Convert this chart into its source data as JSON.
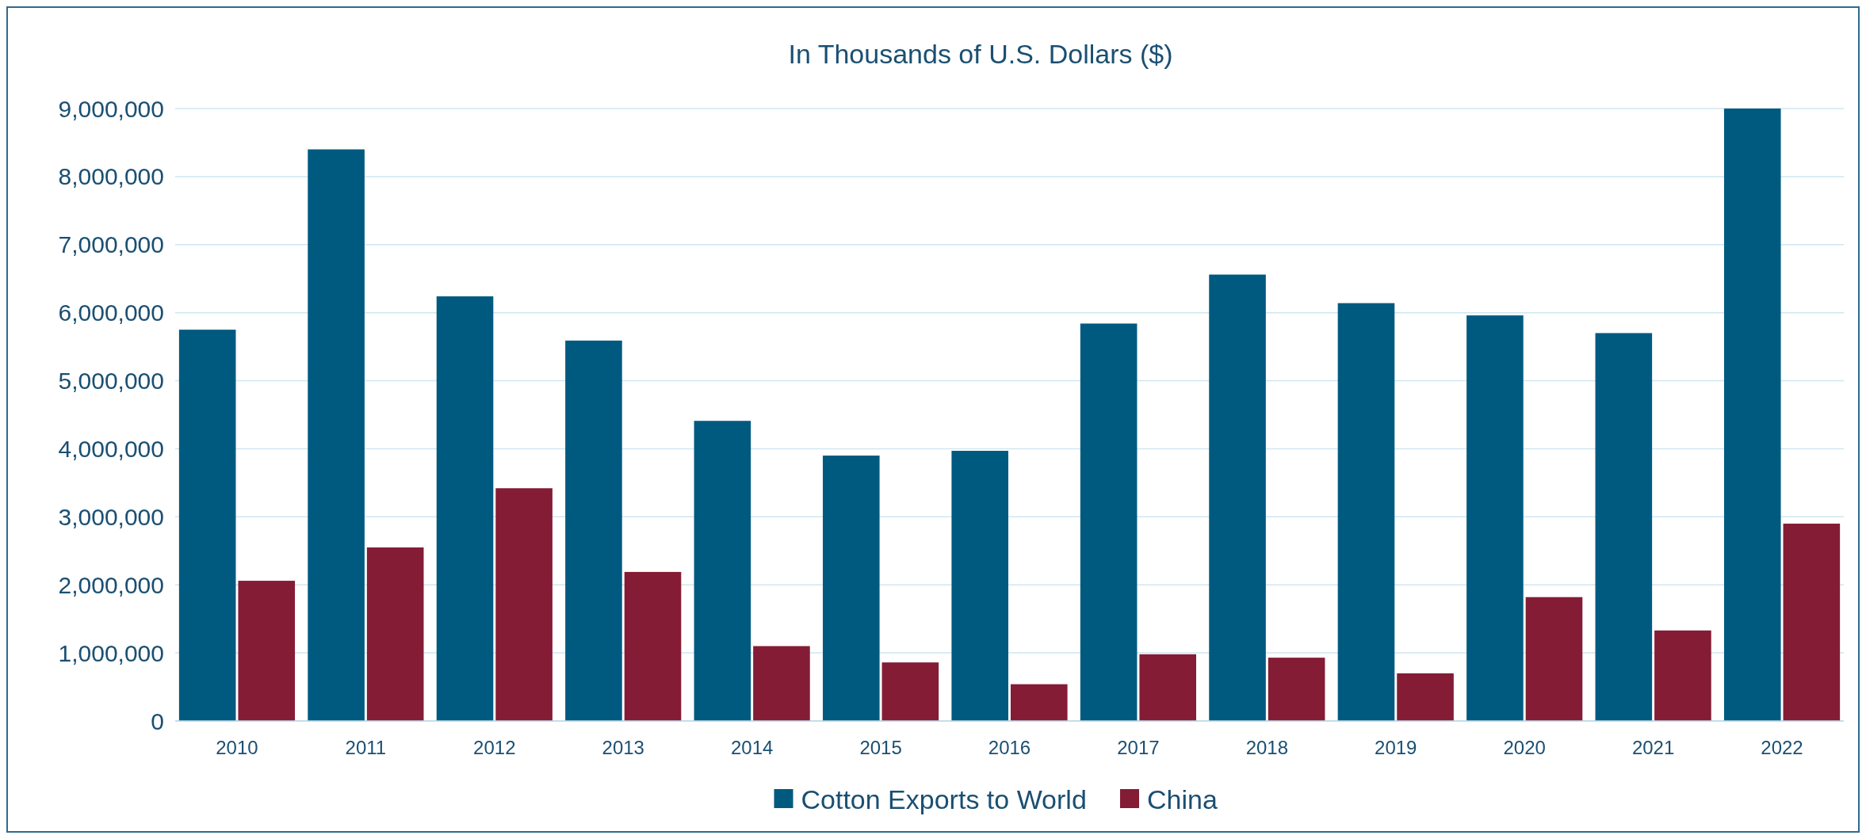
{
  "chart_data": {
    "type": "bar",
    "title": "In Thousands of U.S. Dollars ($)",
    "categories": [
      "2010",
      "2011",
      "2012",
      "2013",
      "2014",
      "2015",
      "2016",
      "2017",
      "2018",
      "2019",
      "2020",
      "2021",
      "2022"
    ],
    "series": [
      {
        "name": "Cotton Exports to World",
        "color": "#005a80",
        "values": [
          5750000,
          8400000,
          6240000,
          5590000,
          4410000,
          3900000,
          3970000,
          5840000,
          6560000,
          6140000,
          5960000,
          5700000,
          9000000
        ]
      },
      {
        "name": "China",
        "color": "#841c35",
        "values": [
          2060000,
          2550000,
          3420000,
          2190000,
          1100000,
          860000,
          540000,
          980000,
          930000,
          700000,
          1820000,
          1330000,
          2900000
        ]
      }
    ],
    "ylim": [
      0,
      9000000
    ],
    "yticks": [
      {
        "value": 0,
        "label": "0"
      },
      {
        "value": 1000000,
        "label": "1,000,000"
      },
      {
        "value": 2000000,
        "label": "2,000,000"
      },
      {
        "value": 3000000,
        "label": "3,000,000"
      },
      {
        "value": 4000000,
        "label": "4,000,000"
      },
      {
        "value": 5000000,
        "label": "5,000,000"
      },
      {
        "value": 6000000,
        "label": "6,000,000"
      },
      {
        "value": 7000000,
        "label": "7,000,000"
      },
      {
        "value": 8000000,
        "label": "8,000,000"
      },
      {
        "value": 9000000,
        "label": "9,000,000"
      }
    ],
    "grid": "y",
    "legend": "bottom"
  }
}
